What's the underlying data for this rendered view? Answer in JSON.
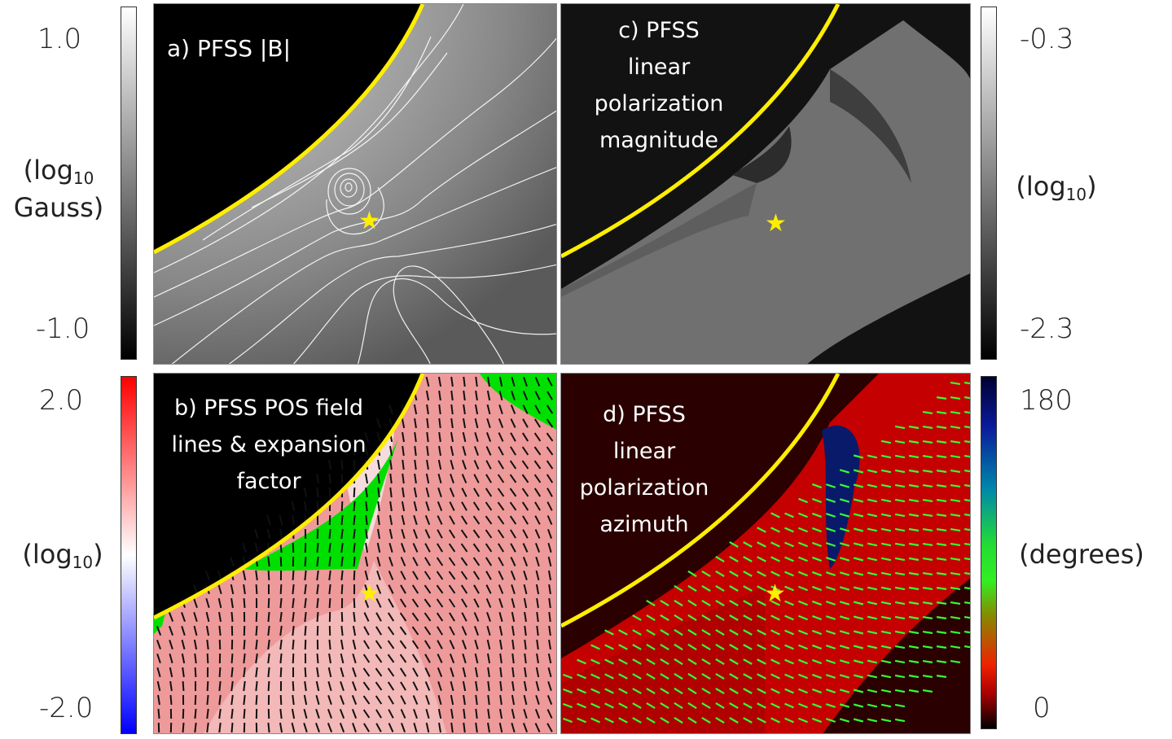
{
  "panels": {
    "a": {
      "title": "a) PFSS |B|",
      "colorbar": {
        "max_label": "1.0",
        "min_label": "-1.0",
        "unit_main": "(log",
        "unit_sub": "10",
        "unit_line2": "Gauss)"
      },
      "colors": {
        "bg_dark": "#000000",
        "field": "#7a7a7a",
        "contour": "#ffffff",
        "limb": "#ffee00"
      }
    },
    "b": {
      "title_lines": [
        "b) PFSS POS field",
        "lines & expansion",
        "factor"
      ],
      "colorbar": {
        "max_label": "2.0",
        "min_label": "-2.0",
        "unit_main": "(log",
        "unit_sub": "10",
        "unit_close": ")"
      },
      "colors": {
        "bg_dark": "#000000",
        "open": "#00e000",
        "closed": "#f08f8f",
        "limb": "#ffee00"
      }
    },
    "c": {
      "title_lines": [
        "c) PFSS",
        "linear",
        "polarization",
        "magnitude"
      ],
      "colorbar": {
        "max_label": "-0.3",
        "min_label": "-2.3",
        "unit_main": "(log",
        "unit_sub": "10",
        "unit_close": ")"
      },
      "colors": {
        "bg_dark": "#121212",
        "shell": "#6e6e6e",
        "limb": "#ffee00"
      }
    },
    "d": {
      "title_lines": [
        "d) PFSS",
        "linear",
        "polarization",
        "azimuth"
      ],
      "colorbar": {
        "max_label": "180",
        "min_label": "0",
        "unit": "(degrees)"
      },
      "colors": {
        "bg_dark": "#2a0000",
        "shell": "#c80000",
        "vectors": "#33ff33",
        "blue": "#0a1a6a",
        "limb": "#ffee00"
      }
    }
  },
  "marker": {
    "symbol": "★",
    "color": "#ffee00"
  }
}
